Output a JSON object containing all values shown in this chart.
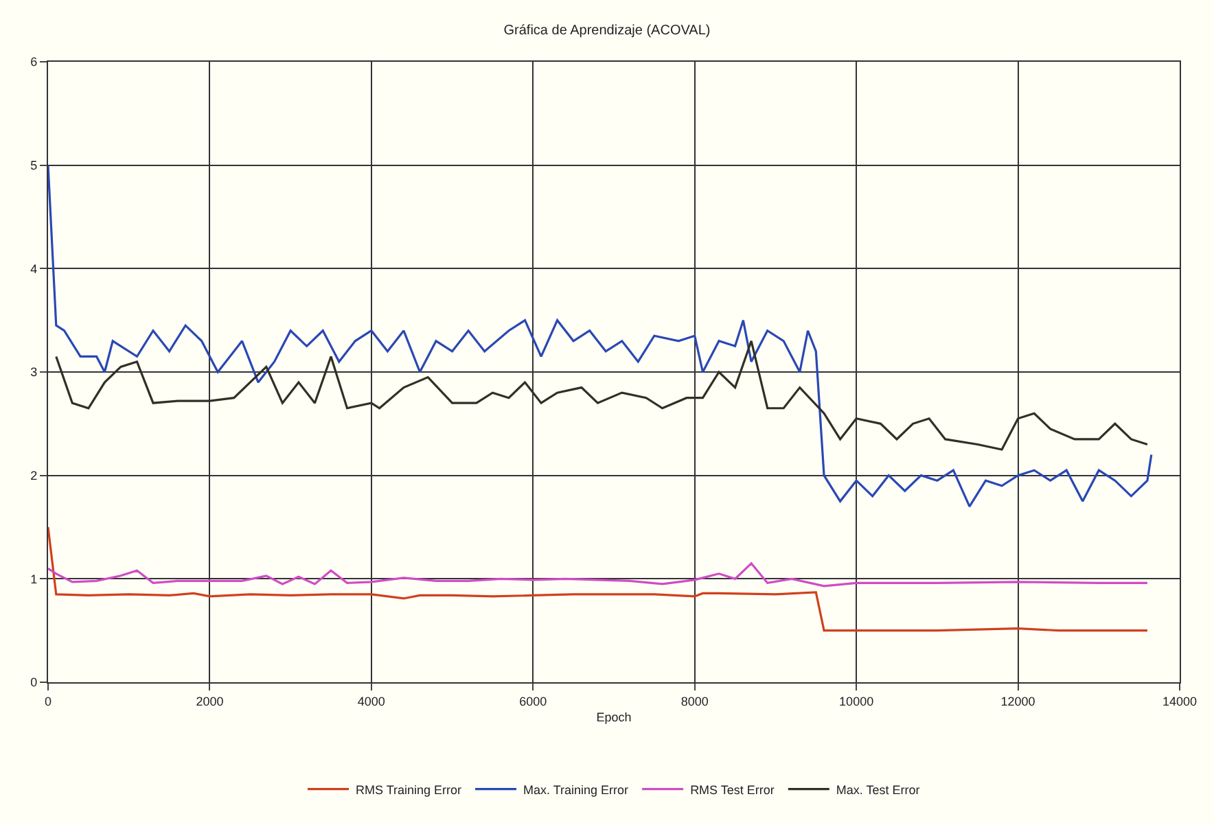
{
  "chart_data": {
    "type": "line",
    "title": "Gráfica de Aprendizaje (ACOVAL)",
    "xlabel": "Epoch",
    "xlim": [
      0,
      14000
    ],
    "xticks": [
      0,
      2000,
      4000,
      6000,
      8000,
      10000,
      12000,
      14000
    ],
    "ylim": [
      0,
      6
    ],
    "yticks": [
      0,
      1,
      2,
      3,
      4,
      5,
      6
    ],
    "grid": true,
    "legend": "bottom",
    "marker": "none",
    "line_style": "solid",
    "series": [
      {
        "name": "RMS Training Error",
        "color": "#d0401e",
        "x": [
          0,
          100,
          500,
          1000,
          1500,
          1800,
          2000,
          2500,
          3000,
          3500,
          4000,
          4400,
          4600,
          5000,
          5500,
          6000,
          6500,
          7000,
          7500,
          8000,
          8100,
          8300,
          9000,
          9500,
          9600,
          10000,
          11000,
          12000,
          12500,
          13000,
          13600
        ],
        "values": [
          1.5,
          0.85,
          0.84,
          0.85,
          0.84,
          0.86,
          0.83,
          0.85,
          0.84,
          0.85,
          0.85,
          0.81,
          0.84,
          0.84,
          0.83,
          0.84,
          0.85,
          0.85,
          0.85,
          0.83,
          0.86,
          0.86,
          0.85,
          0.87,
          0.5,
          0.5,
          0.5,
          0.52,
          0.5,
          0.5,
          0.5
        ]
      },
      {
        "name": "Max. Training Error",
        "color": "#2a48b4",
        "x": [
          0,
          100,
          200,
          400,
          600,
          700,
          800,
          1100,
          1300,
          1500,
          1700,
          1900,
          2100,
          2400,
          2600,
          2800,
          3000,
          3200,
          3400,
          3600,
          3800,
          4000,
          4200,
          4400,
          4600,
          4800,
          5000,
          5200,
          5400,
          5700,
          5900,
          6100,
          6300,
          6500,
          6700,
          6900,
          7100,
          7300,
          7500,
          7800,
          8000,
          8100,
          8300,
          8500,
          8600,
          8700,
          8900,
          9100,
          9300,
          9400,
          9500,
          9600,
          9800,
          10000,
          10200,
          10400,
          10600,
          10800,
          11000,
          11200,
          11400,
          11600,
          11800,
          12000,
          12200,
          12400,
          12600,
          12800,
          13000,
          13200,
          13400,
          13600,
          13650
        ],
        "values": [
          5.0,
          3.45,
          3.4,
          3.15,
          3.15,
          3.0,
          3.3,
          3.15,
          3.4,
          3.2,
          3.45,
          3.3,
          3.0,
          3.3,
          2.9,
          3.1,
          3.4,
          3.25,
          3.4,
          3.1,
          3.3,
          3.4,
          3.2,
          3.4,
          3.0,
          3.3,
          3.2,
          3.4,
          3.2,
          3.4,
          3.5,
          3.15,
          3.5,
          3.3,
          3.4,
          3.2,
          3.3,
          3.1,
          3.35,
          3.3,
          3.35,
          3.0,
          3.3,
          3.25,
          3.5,
          3.1,
          3.4,
          3.3,
          3.0,
          3.4,
          3.2,
          2.0,
          1.75,
          1.95,
          1.8,
          2.0,
          1.85,
          2.0,
          1.95,
          2.05,
          1.7,
          1.95,
          1.9,
          2.0,
          2.05,
          1.95,
          2.05,
          1.75,
          2.05,
          1.95,
          1.8,
          1.95,
          2.2
        ]
      },
      {
        "name": "RMS Test Error",
        "color": "#d04cc4",
        "x": [
          0,
          100,
          300,
          600,
          900,
          1100,
          1300,
          1600,
          2000,
          2400,
          2700,
          2900,
          3100,
          3300,
          3500,
          3700,
          4000,
          4400,
          4800,
          5200,
          5600,
          6000,
          6400,
          6800,
          7200,
          7600,
          8000,
          8300,
          8500,
          8700,
          8900,
          9200,
          9600,
          10000,
          11000,
          12000,
          13000,
          13600
        ],
        "values": [
          1.1,
          1.05,
          0.97,
          0.98,
          1.03,
          1.08,
          0.96,
          0.98,
          0.98,
          0.98,
          1.03,
          0.95,
          1.02,
          0.95,
          1.08,
          0.96,
          0.97,
          1.01,
          0.98,
          0.98,
          1.0,
          0.99,
          1.0,
          0.99,
          0.98,
          0.95,
          0.99,
          1.05,
          1.0,
          1.15,
          0.96,
          1.0,
          0.93,
          0.96,
          0.96,
          0.97,
          0.96,
          0.96
        ]
      },
      {
        "name": "Max. Test Error",
        "color": "#303024",
        "x": [
          100,
          300,
          500,
          700,
          900,
          1100,
          1300,
          1600,
          2000,
          2300,
          2700,
          2900,
          3100,
          3300,
          3500,
          3700,
          4000,
          4100,
          4400,
          4700,
          5000,
          5300,
          5500,
          5700,
          5900,
          6100,
          6300,
          6600,
          6800,
          7100,
          7400,
          7600,
          7900,
          8100,
          8300,
          8500,
          8700,
          8900,
          9100,
          9300,
          9600,
          9800,
          10000,
          10300,
          10500,
          10700,
          10900,
          11100,
          11500,
          11800,
          12000,
          12200,
          12400,
          12700,
          13000,
          13200,
          13400,
          13600
        ],
        "values": [
          3.15,
          2.7,
          2.65,
          2.9,
          3.05,
          3.1,
          2.7,
          2.72,
          2.72,
          2.75,
          3.05,
          2.7,
          2.9,
          2.7,
          3.15,
          2.65,
          2.7,
          2.65,
          2.85,
          2.95,
          2.7,
          2.7,
          2.8,
          2.75,
          2.9,
          2.7,
          2.8,
          2.85,
          2.7,
          2.8,
          2.75,
          2.65,
          2.75,
          2.75,
          3.0,
          2.85,
          3.3,
          2.65,
          2.65,
          2.85,
          2.6,
          2.35,
          2.55,
          2.5,
          2.35,
          2.5,
          2.55,
          2.35,
          2.3,
          2.25,
          2.55,
          2.6,
          2.45,
          2.35,
          2.35,
          2.5,
          2.35,
          2.3
        ]
      }
    ]
  }
}
